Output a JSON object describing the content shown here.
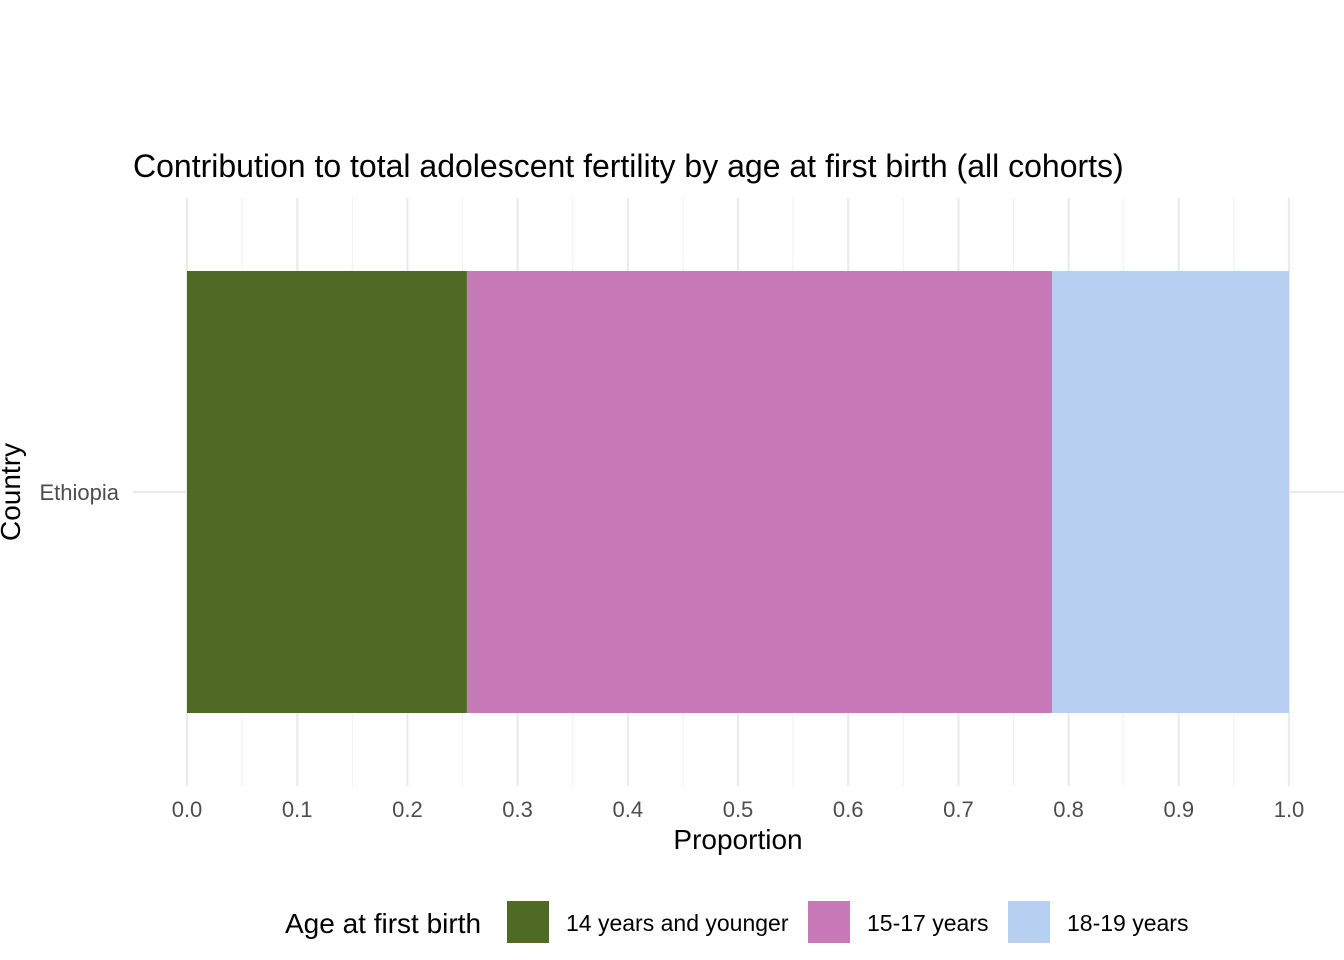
{
  "chart_data": {
    "type": "bar",
    "orientation": "horizontal",
    "stacked": true,
    "title": "Contribution to total adolescent fertility by age at first birth (all cohorts)",
    "xlabel": "Proportion",
    "ylabel": "Country",
    "categories": [
      "Ethiopia"
    ],
    "xlim": [
      0,
      1
    ],
    "x_ticks": [
      "0.0",
      "0.1",
      "0.2",
      "0.3",
      "0.4",
      "0.5",
      "0.6",
      "0.7",
      "0.8",
      "0.9",
      "1.0"
    ],
    "grid": true,
    "legend_title": "Age at first birth",
    "legend_position": "bottom",
    "series": [
      {
        "name": "14 years and younger",
        "color": "#4e6a24",
        "values": [
          0.254
        ]
      },
      {
        "name": "15-17 years",
        "color": "#c879b8",
        "values": [
          0.531
        ]
      },
      {
        "name": "18-19 years",
        "color": "#b7cff0",
        "values": [
          0.215
        ]
      }
    ]
  }
}
